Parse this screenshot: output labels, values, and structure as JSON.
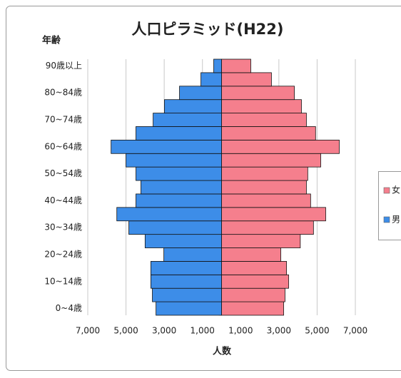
{
  "chart_data": {
    "type": "bar",
    "title": "人口ピラミッド(H22)",
    "y_axis_label": "年齢",
    "x_axis_label": "人数",
    "categories": [
      "0~4歳",
      null,
      "10~14歳",
      null,
      "20~24歳",
      null,
      "30~34歳",
      null,
      "40~44歳",
      null,
      "50~54歳",
      null,
      "60~64歳",
      null,
      "70~74歳",
      null,
      "80~84歳",
      null,
      "90歳以上"
    ],
    "series": [
      {
        "name": "女",
        "color": "#f57f8d",
        "values": [
          3250,
          3320,
          3510,
          3400,
          3100,
          4120,
          4810,
          5450,
          4660,
          4440,
          4510,
          5190,
          6160,
          4920,
          4440,
          4180,
          3810,
          2610,
          1530
        ]
      },
      {
        "name": "男",
        "color": "#3d8de8",
        "values": [
          -3430,
          -3620,
          -3700,
          -3700,
          -3020,
          -4000,
          -4850,
          -5480,
          -4480,
          -4220,
          -4480,
          -5000,
          -5780,
          -4480,
          -3580,
          -2990,
          -2200,
          -1080,
          -410
        ]
      }
    ],
    "xlim": [
      -7000,
      7000
    ],
    "xticks": [
      {
        "value": -7000,
        "label": "7,000"
      },
      {
        "value": -5000,
        "label": "5,000"
      },
      {
        "value": -3000,
        "label": "3,000"
      },
      {
        "value": -1000,
        "label": "1,000"
      },
      {
        "value": 1000,
        "label": "1,000"
      },
      {
        "value": 3000,
        "label": "3,000"
      },
      {
        "value": 5000,
        "label": "5,000"
      },
      {
        "value": 7000,
        "label": "7,000"
      }
    ],
    "grid": true,
    "legend": "right"
  }
}
